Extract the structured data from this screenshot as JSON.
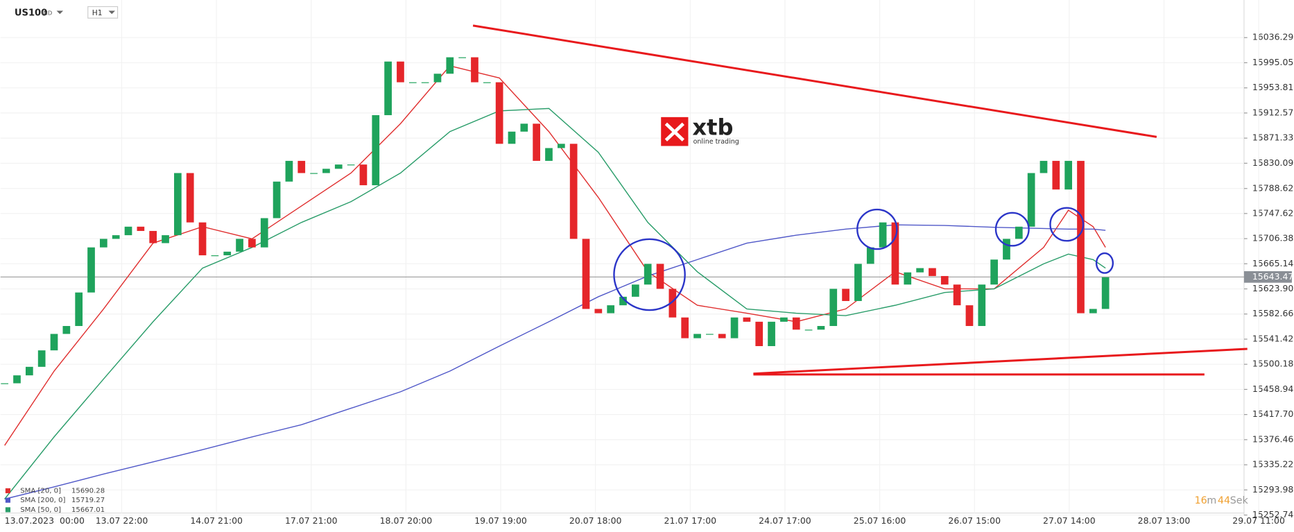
{
  "chart_data": {
    "type": "candlestick",
    "symbol": "US100",
    "market": "IND",
    "timeframe": "H1",
    "ylim": [
      15252,
      16098
    ],
    "yticks": [
      16036.29,
      15995.05,
      15953.81,
      15912.57,
      15871.33,
      15830.09,
      15788.62,
      15747.62,
      15706.38,
      15665.14,
      {
        "value": 15623.9,
        "label": "15623.90"
      },
      15582.66,
      15541.42,
      15500.18,
      15458.94,
      {
        "value": 15417.7,
        "label": "15417.70"
      },
      15376.46,
      15335.22,
      15293.98,
      15252.74
    ],
    "xticks": [
      "13.07.2023  00:00",
      "13.07 22:00",
      "14.07 21:00",
      "17.07 21:00",
      "18.07 20:00",
      "19.07 19:00",
      "20.07 18:00",
      "21.07 17:00",
      "24.07 17:00",
      "25.07 16:00",
      "26.07 15:00",
      "27.07 14:00",
      "28.07 13:00",
      "29.07 11:00"
    ],
    "candles": {
      "close": [
        15469,
        15482,
        15496,
        15523,
        15550,
        15563,
        15618,
        15692,
        15706,
        15712,
        15726,
        15719,
        15699,
        15712,
        15814,
        15733,
        15679,
        15679,
        15685,
        15706,
        15692,
        15740,
        15800,
        15834,
        15814,
        15814,
        15821,
        15828,
        15828,
        15794,
        15909,
        15997,
        15963,
        15963,
        15963,
        15977,
        16004,
        16004,
        15963,
        15963,
        15862,
        15882,
        15895,
        15834,
        15855,
        15862,
        15706,
        15591,
        15584,
        15597,
        15611,
        15631,
        15665,
        15624,
        15577,
        15543,
        15550,
        15550,
        15543,
        15577,
        15570,
        15530,
        15570,
        15577,
        15557,
        15557,
        15563,
        15624,
        15604,
        15665,
        15692,
        15733,
        15631,
        15651,
        15658,
        15645,
        15631,
        15597,
        15563,
        15631,
        15672,
        15706,
        15726,
        15814,
        15834,
        15787,
        15834,
        15584,
        15591,
        15643
      ]
    },
    "series": [
      {
        "name": "SMA [20, 0]",
        "last": 15690.28,
        "color": "#e03030",
        "x": [
          0,
          4,
          8,
          12,
          16,
          20,
          24,
          28,
          32,
          36,
          40,
          44,
          48,
          52,
          56,
          60,
          64,
          68,
          72,
          76,
          80,
          84,
          86,
          88,
          89
        ],
        "values": [
          15367,
          15489,
          15591,
          15699,
          15726,
          15706,
          15760,
          15814,
          15895,
          15990,
          15970,
          15882,
          15774,
          15652,
          15597,
          15584,
          15570,
          15591,
          15652,
          15624,
          15624,
          15692,
          15753,
          15726,
          15692
        ]
      },
      {
        "name": "SMA [200, 0]",
        "last": 15719.27,
        "color": "#5058c8",
        "x": [
          0,
          4,
          8,
          12,
          16,
          20,
          24,
          28,
          32,
          36,
          40,
          44,
          48,
          52,
          56,
          60,
          64,
          68,
          72,
          76,
          80,
          84,
          86,
          88,
          89
        ],
        "values": [
          15279,
          15299,
          15320,
          15340,
          15360,
          15381,
          15401,
          15428,
          15455,
          15489,
          15530,
          15570,
          15611,
          15645,
          15672,
          15699,
          15712,
          15722,
          15729,
          15728,
          15725,
          15723,
          15722,
          15722,
          15720
        ]
      },
      {
        "name": "SMA [50, 0]",
        "last": 15667.01,
        "color": "#2a9d6a",
        "x": [
          0,
          4,
          8,
          12,
          16,
          20,
          24,
          28,
          32,
          36,
          40,
          44,
          48,
          52,
          56,
          60,
          64,
          68,
          72,
          76,
          80,
          84,
          86,
          88,
          89
        ],
        "values": [
          15279,
          15381,
          15476,
          15570,
          15658,
          15692,
          15733,
          15767,
          15814,
          15882,
          15916,
          15920,
          15848,
          15733,
          15652,
          15591,
          15584,
          15580,
          15597,
          15618,
          15624,
          15665,
          15681,
          15672,
          15658
        ]
      }
    ],
    "last_price": 15643.47,
    "timer": {
      "minutes": 16,
      "minutes_unit": "m",
      "seconds": 44,
      "seconds_unit": "Sek"
    },
    "logo": {
      "name": "xtb",
      "tagline": "online trading"
    }
  }
}
